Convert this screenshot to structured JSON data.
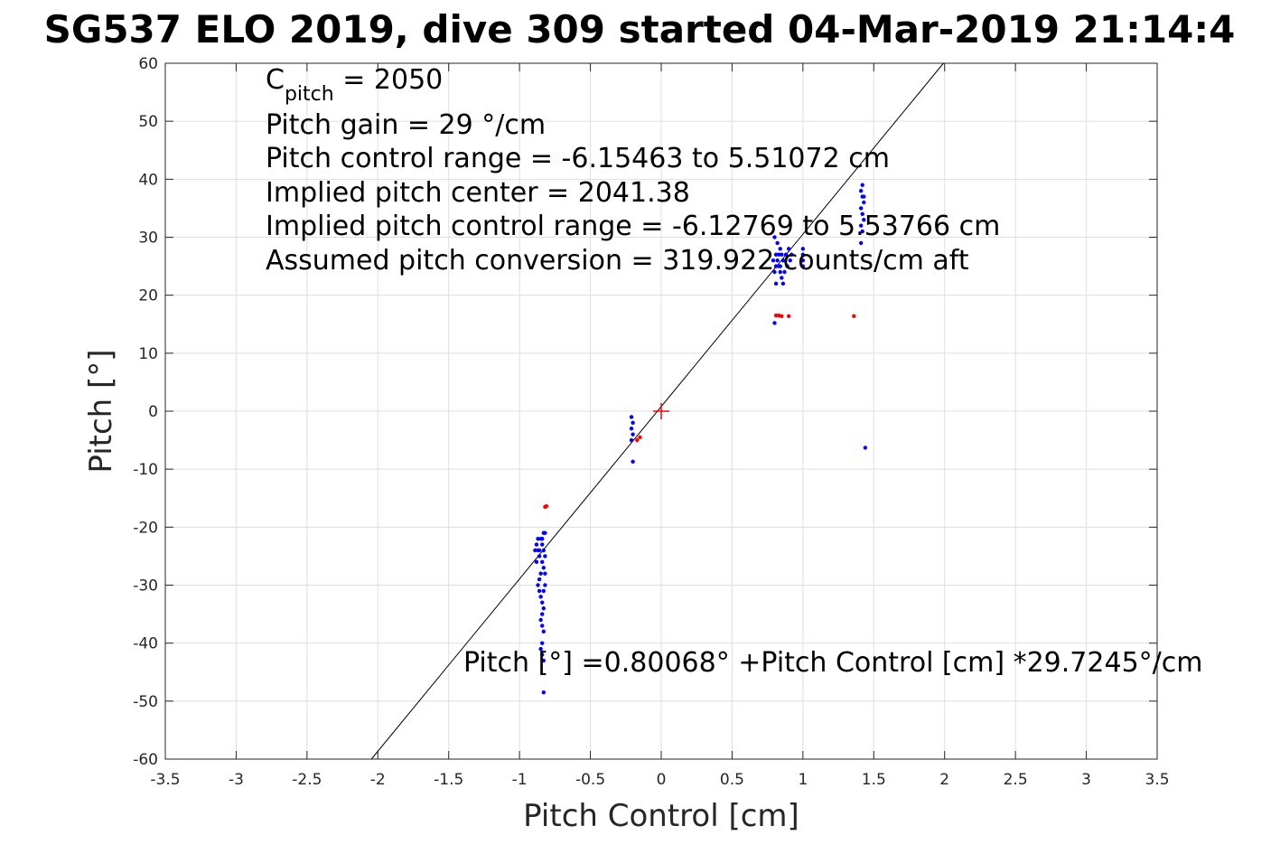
{
  "chart_data": {
    "type": "scatter",
    "title": "SG537 ELO 2019, dive 309 started 04-Mar-2019 21:14:4",
    "xlabel": "Pitch Control [cm]",
    "ylabel": "Pitch [°]",
    "xlim": [
      -3.5,
      3.5
    ],
    "ylim": [
      -60,
      60
    ],
    "xticks": [
      -3.5,
      -3,
      -2.5,
      -2,
      -1.5,
      -1,
      -0.5,
      0,
      0.5,
      1,
      1.5,
      2,
      2.5,
      3,
      3.5
    ],
    "yticks": [
      -60,
      -50,
      -40,
      -30,
      -20,
      -10,
      0,
      10,
      20,
      30,
      40,
      50,
      60
    ],
    "xtick_labels": [
      "-3.5",
      "-3",
      "-2.5",
      "-2",
      "-1.5",
      "-1",
      "-0.5",
      "0",
      "0.5",
      "1",
      "1.5",
      "2",
      "2.5",
      "3",
      "3.5"
    ],
    "ytick_labels": [
      "-60",
      "-50",
      "-40",
      "-30",
      "-20",
      "-10",
      "0",
      "10",
      "20",
      "30",
      "40",
      "50",
      "60"
    ],
    "grid": true,
    "fit_line": {
      "intercept": 0.80068,
      "slope": 29.7245
    },
    "center_marker": {
      "x": 0,
      "y": 0,
      "color": "#ff0000"
    },
    "series": [
      {
        "color": "#0000ff",
        "points": [
          [
            -0.88,
            -23
          ],
          [
            -0.87,
            -24
          ],
          [
            -0.86,
            -25
          ],
          [
            -0.88,
            -26
          ],
          [
            -0.85,
            -22
          ],
          [
            -0.84,
            -22
          ],
          [
            -0.83,
            -21
          ],
          [
            -0.82,
            -21
          ],
          [
            -0.84,
            -23
          ],
          [
            -0.83,
            -24
          ],
          [
            -0.82,
            -25
          ],
          [
            -0.84,
            -26
          ],
          [
            -0.83,
            -27
          ],
          [
            -0.85,
            -28
          ],
          [
            -0.86,
            -29
          ],
          [
            -0.87,
            -30
          ],
          [
            -0.86,
            -31
          ],
          [
            -0.85,
            -32
          ],
          [
            -0.84,
            -33
          ],
          [
            -0.83,
            -34
          ],
          [
            -0.82,
            -28
          ],
          [
            -0.82,
            -30
          ],
          [
            -0.83,
            -31
          ],
          [
            -0.84,
            -35
          ],
          [
            -0.85,
            -36
          ],
          [
            -0.84,
            -37
          ],
          [
            -0.83,
            -38
          ],
          [
            -0.84,
            -40
          ],
          [
            -0.85,
            -41
          ],
          [
            -0.84,
            -42
          ],
          [
            -0.83,
            -43
          ],
          [
            -0.83,
            -48.5
          ],
          [
            -0.87,
            -22
          ],
          [
            -0.86,
            -24
          ],
          [
            -0.89,
            -24
          ],
          [
            -0.21,
            -1
          ],
          [
            -0.2,
            -2
          ],
          [
            -0.21,
            -3
          ],
          [
            -0.2,
            -4
          ],
          [
            -0.21,
            -5
          ],
          [
            -0.2,
            -8.7
          ],
          [
            0.8,
            24
          ],
          [
            0.81,
            25
          ],
          [
            0.82,
            26
          ],
          [
            0.83,
            27
          ],
          [
            0.84,
            28
          ],
          [
            0.85,
            23
          ],
          [
            0.86,
            22
          ],
          [
            0.8,
            30
          ],
          [
            0.82,
            29
          ],
          [
            0.84,
            25
          ],
          [
            0.86,
            26
          ],
          [
            0.88,
            27
          ],
          [
            0.9,
            28
          ],
          [
            0.87,
            24
          ],
          [
            0.85,
            27
          ],
          [
            0.83,
            25
          ],
          [
            0.81,
            27
          ],
          [
            0.79,
            26
          ],
          [
            0.89,
            25
          ],
          [
            0.91,
            26
          ],
          [
            0.92,
            27
          ],
          [
            0.8,
            15.2
          ],
          [
            0.81,
            22
          ],
          [
            0.84,
            24
          ],
          [
            1.0,
            25
          ],
          [
            1.0,
            26
          ],
          [
            1.0,
            27
          ],
          [
            1.0,
            28
          ],
          [
            1.41,
            38
          ],
          [
            1.42,
            37
          ],
          [
            1.43,
            36
          ],
          [
            1.41,
            35
          ],
          [
            1.42,
            34
          ],
          [
            1.43,
            33
          ],
          [
            1.41,
            32
          ],
          [
            1.42,
            31
          ],
          [
            1.43,
            37
          ],
          [
            1.42,
            39
          ],
          [
            1.41,
            29
          ],
          [
            1.44,
            -6.3
          ]
        ]
      },
      {
        "color": "#ff0000",
        "points": [
          [
            -0.82,
            -16.5
          ],
          [
            -0.81,
            -16.4
          ],
          [
            -0.15,
            -4.5
          ],
          [
            -0.17,
            -5
          ],
          [
            0.81,
            16.5
          ],
          [
            0.83,
            16.5
          ],
          [
            0.85,
            16.4
          ],
          [
            0.9,
            16.4
          ],
          [
            1.36,
            16.4
          ]
        ]
      }
    ],
    "annotations": {
      "c_pitch_main": "C",
      "c_pitch_sub": "pitch",
      "c_pitch_rest": " = 2050",
      "line2": "Pitch gain = 29 °/cm",
      "line3": "Pitch control range = -6.15463 to 5.51072 cm",
      "line4": "Implied pitch center = 2041.38",
      "line5": "Implied pitch control range = -6.12769 to 5.53766 cm",
      "line6": "Assumed pitch conversion = 319.922 counts/cm aft",
      "fit_equation": "Pitch [°] =0.80068° +Pitch Control [cm] *29.7245°/cm"
    }
  }
}
